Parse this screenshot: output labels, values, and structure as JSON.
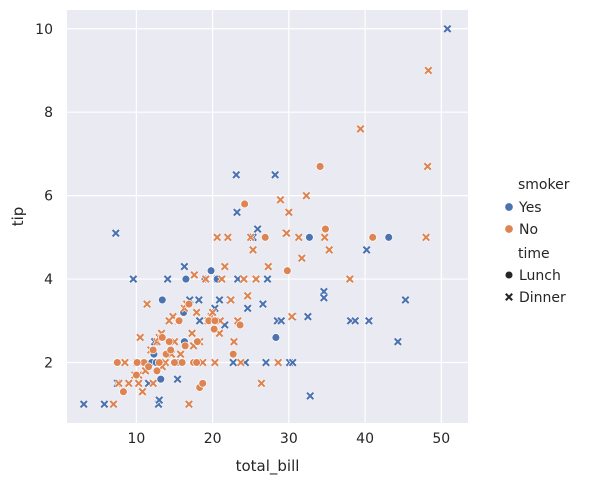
{
  "chart_data": {
    "type": "scatter",
    "title": "",
    "xlabel": "total_bill",
    "ylabel": "tip",
    "xlim": [
      0.9,
      53.5
    ],
    "ylim": [
      0.55,
      10.45
    ],
    "xticks": [
      10,
      20,
      30,
      40,
      50
    ],
    "yticks": [
      2,
      4,
      6,
      8,
      10
    ],
    "grid": true,
    "legend_position": "right",
    "legend": {
      "hue_title": "smoker",
      "hue": [
        {
          "label": "Yes",
          "color": "#4c72b0"
        },
        {
          "label": "No",
          "color": "#dd8452"
        }
      ],
      "style_title": "time",
      "style": [
        {
          "label": "Lunch",
          "marker": "circle"
        },
        {
          "label": "Dinner",
          "marker": "x"
        }
      ]
    },
    "series": [
      {
        "smoker": "Yes",
        "time": "Dinner",
        "color": "#4c72b0",
        "marker": "x",
        "points": [
          [
            3.1,
            1.0
          ],
          [
            5.8,
            1.0
          ],
          [
            7.3,
            5.1
          ],
          [
            7.5,
            1.5
          ],
          [
            9.6,
            4.0
          ],
          [
            11.6,
            2.0
          ],
          [
            11.6,
            1.5
          ],
          [
            12.4,
            2.5
          ],
          [
            12.9,
            1.0
          ],
          [
            13.0,
            1.1
          ],
          [
            13.1,
            2.0
          ],
          [
            14.1,
            4.0
          ],
          [
            15.4,
            1.6
          ],
          [
            16.3,
            4.3
          ],
          [
            17.0,
            3.5
          ],
          [
            18.2,
            3.5
          ],
          [
            20.3,
            3.3
          ],
          [
            20.6,
            4.0
          ],
          [
            20.9,
            3.5
          ],
          [
            22.3,
            3.5
          ],
          [
            22.7,
            2.0
          ],
          [
            23.1,
            6.5
          ],
          [
            23.2,
            5.6
          ],
          [
            23.3,
            4.0
          ],
          [
            24.3,
            2.0
          ],
          [
            24.6,
            3.3
          ],
          [
            25.3,
            5.0
          ],
          [
            25.9,
            5.2
          ],
          [
            26.6,
            3.4
          ],
          [
            27.2,
            4.0
          ],
          [
            27.0,
            2.0
          ],
          [
            28.2,
            6.5
          ],
          [
            28.5,
            3.0
          ],
          [
            29.0,
            3.0
          ],
          [
            30.1,
            2.0
          ],
          [
            30.5,
            2.0
          ],
          [
            30.5,
            3.1
          ],
          [
            32.8,
            1.2
          ],
          [
            32.5,
            3.1
          ],
          [
            34.6,
            3.7
          ],
          [
            34.6,
            3.55
          ],
          [
            38.1,
            3.0
          ],
          [
            38.7,
            3.0
          ],
          [
            40.2,
            4.7
          ],
          [
            40.5,
            3.0
          ],
          [
            44.3,
            2.5
          ],
          [
            45.3,
            3.5
          ],
          [
            50.8,
            10.0
          ],
          [
            21.6,
            2.9
          ],
          [
            18.3,
            3.0
          ]
        ]
      },
      {
        "smoker": "Yes",
        "time": "Lunch",
        "color": "#4c72b0",
        "marker": "circle",
        "points": [
          [
            13.4,
            3.5
          ],
          [
            16.5,
            4.0
          ],
          [
            19.8,
            4.2
          ],
          [
            20.6,
            4.0
          ],
          [
            28.3,
            2.6
          ],
          [
            32.7,
            5.0
          ],
          [
            43.1,
            5.0
          ],
          [
            12.0,
            2.0
          ],
          [
            13.2,
            1.6
          ],
          [
            15.3,
            2.0
          ],
          [
            16.2,
            3.2
          ],
          [
            12.6,
            2.0
          ],
          [
            19.0,
            4.0
          ],
          [
            16.3,
            2.5
          ],
          [
            12.3,
            2.2
          ]
        ]
      },
      {
        "smoker": "No",
        "time": "Dinner",
        "color": "#dd8452",
        "marker": "x",
        "points": [
          [
            7.0,
            1.0
          ],
          [
            7.7,
            1.5
          ],
          [
            8.5,
            2.0
          ],
          [
            9.0,
            1.5
          ],
          [
            10.1,
            2.0
          ],
          [
            10.3,
            1.7
          ],
          [
            10.5,
            2.6
          ],
          [
            10.8,
            1.3
          ],
          [
            11.2,
            1.8
          ],
          [
            11.4,
            3.4
          ],
          [
            11.9,
            2.3
          ],
          [
            12.7,
            2.5
          ],
          [
            13.0,
            2.6
          ],
          [
            13.3,
            2.7
          ],
          [
            13.8,
            2.0
          ],
          [
            14.3,
            3.0
          ],
          [
            14.6,
            2.2
          ],
          [
            15.0,
            2.5
          ],
          [
            15.5,
            3.0
          ],
          [
            15.8,
            2.2
          ],
          [
            16.3,
            3.3
          ],
          [
            16.6,
            3.4
          ],
          [
            16.9,
            1.0
          ],
          [
            17.3,
            2.7
          ],
          [
            17.6,
            4.1
          ],
          [
            17.9,
            3.2
          ],
          [
            18.3,
            2.5
          ],
          [
            18.7,
            2.0
          ],
          [
            19.1,
            4.0
          ],
          [
            19.4,
            3.0
          ],
          [
            19.8,
            3.1
          ],
          [
            20.0,
            3.2
          ],
          [
            20.3,
            2.0
          ],
          [
            20.6,
            5.0
          ],
          [
            20.9,
            2.7
          ],
          [
            21.2,
            4.0
          ],
          [
            21.6,
            4.3
          ],
          [
            22.0,
            5.0
          ],
          [
            22.4,
            3.5
          ],
          [
            22.8,
            2.5
          ],
          [
            23.3,
            3.0
          ],
          [
            23.7,
            2.0
          ],
          [
            24.1,
            4.0
          ],
          [
            24.6,
            3.6
          ],
          [
            25.0,
            5.0
          ],
          [
            25.3,
            4.7
          ],
          [
            25.7,
            4.0
          ],
          [
            26.4,
            1.5
          ],
          [
            27.3,
            4.3
          ],
          [
            28.6,
            2.0
          ],
          [
            28.9,
            5.9
          ],
          [
            29.6,
            5.1
          ],
          [
            30.0,
            5.6
          ],
          [
            30.4,
            3.1
          ],
          [
            31.3,
            5.0
          ],
          [
            31.7,
            4.5
          ],
          [
            32.3,
            6.0
          ],
          [
            34.7,
            5.0
          ],
          [
            35.3,
            4.7
          ],
          [
            38.0,
            4.0
          ],
          [
            39.4,
            7.6
          ],
          [
            48.3,
            9.0
          ],
          [
            48.2,
            6.7
          ],
          [
            48.0,
            5.0
          ],
          [
            29.7,
            5.1
          ],
          [
            12.2,
            1.5
          ],
          [
            9.8,
            1.7
          ],
          [
            10.3,
            1.5
          ],
          [
            13.4,
            1.9
          ],
          [
            17.5,
            2.4
          ],
          [
            21.0,
            3.0
          ],
          [
            14.8,
            3.1
          ]
        ]
      },
      {
        "smoker": "No",
        "time": "Lunch",
        "color": "#dd8452",
        "marker": "circle",
        "points": [
          [
            7.5,
            2.0
          ],
          [
            8.3,
            1.3
          ],
          [
            10.0,
            1.7
          ],
          [
            10.3,
            2.0
          ],
          [
            11.0,
            2.0
          ],
          [
            11.6,
            1.9
          ],
          [
            12.2,
            2.3
          ],
          [
            12.7,
            1.8
          ],
          [
            13.0,
            2.0
          ],
          [
            13.4,
            2.6
          ],
          [
            13.9,
            2.2
          ],
          [
            14.5,
            2.3
          ],
          [
            15.0,
            2.0
          ],
          [
            15.5,
            3.0
          ],
          [
            16.0,
            2.0
          ],
          [
            16.4,
            2.4
          ],
          [
            16.9,
            3.4
          ],
          [
            17.5,
            2.0
          ],
          [
            18.0,
            2.5
          ],
          [
            18.3,
            1.4
          ],
          [
            18.7,
            1.5
          ],
          [
            19.5,
            3.0
          ],
          [
            20.2,
            2.8
          ],
          [
            20.3,
            3.0
          ],
          [
            22.7,
            2.2
          ],
          [
            23.6,
            2.9
          ],
          [
            24.2,
            5.8
          ],
          [
            26.9,
            5.0
          ],
          [
            29.8,
            4.2
          ],
          [
            34.1,
            6.7
          ],
          [
            34.8,
            5.2
          ],
          [
            41.0,
            5.0
          ],
          [
            15.6,
            3.0
          ],
          [
            10.1,
            2.0
          ],
          [
            14.3,
            2.5
          ],
          [
            17.9,
            2.0
          ]
        ]
      }
    ]
  }
}
